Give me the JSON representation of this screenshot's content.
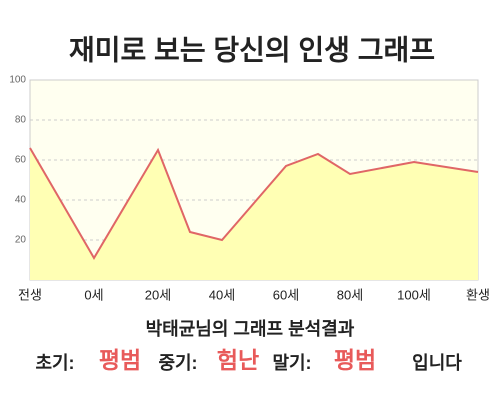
{
  "chart_data": {
    "type": "line",
    "title": "재미로 보는 당신의 인생 그래프",
    "subtitle": "박태균님의 그래프 분석결과",
    "x": [
      -20,
      0,
      20,
      30,
      40,
      60,
      70,
      80,
      100,
      120
    ],
    "series": [
      {
        "name": null,
        "color": "#e06666",
        "fill": "#ffffb4",
        "values": [
          66,
          11,
          65,
          24,
          20,
          57,
          63,
          53,
          59,
          54
        ]
      }
    ],
    "xlim": [
      -20,
      120
    ],
    "xticks": [
      {
        "value": -20,
        "label": "전생"
      },
      {
        "value": 0,
        "label": "0세"
      },
      {
        "value": 20,
        "label": "20세"
      },
      {
        "value": 40,
        "label": "40세"
      },
      {
        "value": 60,
        "label": "60세"
      },
      {
        "value": 80,
        "label": "80세"
      },
      {
        "value": 100,
        "label": "100세"
      },
      {
        "value": 120,
        "label": "환생"
      }
    ],
    "ylim": [
      0,
      100
    ],
    "yticks": [
      20,
      40,
      60,
      80,
      100
    ],
    "grid": true,
    "summary": [
      {
        "label": "초기:",
        "value": "평범"
      },
      {
        "label": "중기:",
        "value": "험난"
      },
      {
        "label": "말기:",
        "value": "평범"
      }
    ],
    "ending": "입니다"
  }
}
